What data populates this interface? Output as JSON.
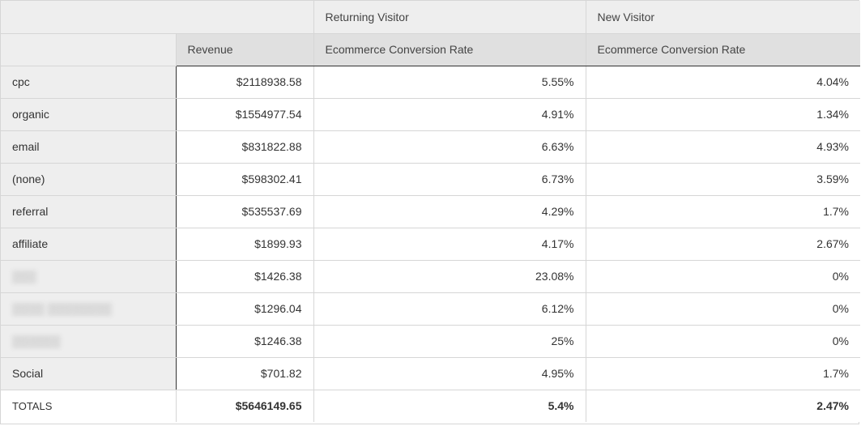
{
  "column_groups": [
    {
      "label": "Returning Visitor"
    },
    {
      "label": "New Visitor"
    }
  ],
  "measures": [
    {
      "label": "Revenue"
    },
    {
      "label": "Ecommerce Conversion Rate"
    },
    {
      "label": "Ecommerce Conversion Rate"
    }
  ],
  "rows": [
    {
      "label": "cpc",
      "revenue": "$2118938.58",
      "returning_rate": "5.55%",
      "new_rate": "4.04%",
      "blurred": false
    },
    {
      "label": "organic",
      "revenue": "$1554977.54",
      "returning_rate": "4.91%",
      "new_rate": "1.34%",
      "blurred": false
    },
    {
      "label": "email",
      "revenue": "$831822.88",
      "returning_rate": "6.63%",
      "new_rate": "4.93%",
      "blurred": false
    },
    {
      "label": "(none)",
      "revenue": "$598302.41",
      "returning_rate": "6.73%",
      "new_rate": "3.59%",
      "blurred": false
    },
    {
      "label": "referral",
      "revenue": "$535537.69",
      "returning_rate": "4.29%",
      "new_rate": "1.7%",
      "blurred": false
    },
    {
      "label": "affiliate",
      "revenue": "$1899.93",
      "returning_rate": "4.17%",
      "new_rate": "2.67%",
      "blurred": false
    },
    {
      "label": "▒▒▒",
      "revenue": "$1426.38",
      "returning_rate": "23.08%",
      "new_rate": "0%",
      "blurred": true
    },
    {
      "label": "▒▒▒▒ ▒▒▒▒▒▒▒▒",
      "revenue": "$1296.04",
      "returning_rate": "6.12%",
      "new_rate": "0%",
      "blurred": true
    },
    {
      "label": "▒▒▒▒▒▒",
      "revenue": "$1246.38",
      "returning_rate": "25%",
      "new_rate": "0%",
      "blurred": true
    },
    {
      "label": "Social",
      "revenue": "$701.82",
      "returning_rate": "4.95%",
      "new_rate": "1.7%",
      "blurred": false
    }
  ],
  "totals": {
    "label": "TOTALS",
    "revenue": "$5646149.65",
    "returning_rate": "5.4%",
    "new_rate": "2.47%"
  },
  "colors": {
    "header_bg": "#eeeeee",
    "measure_header_bg": "#e0e0e0",
    "grid_line": "#d6d6d6",
    "strong_line": "#333333",
    "text": "#333333"
  }
}
